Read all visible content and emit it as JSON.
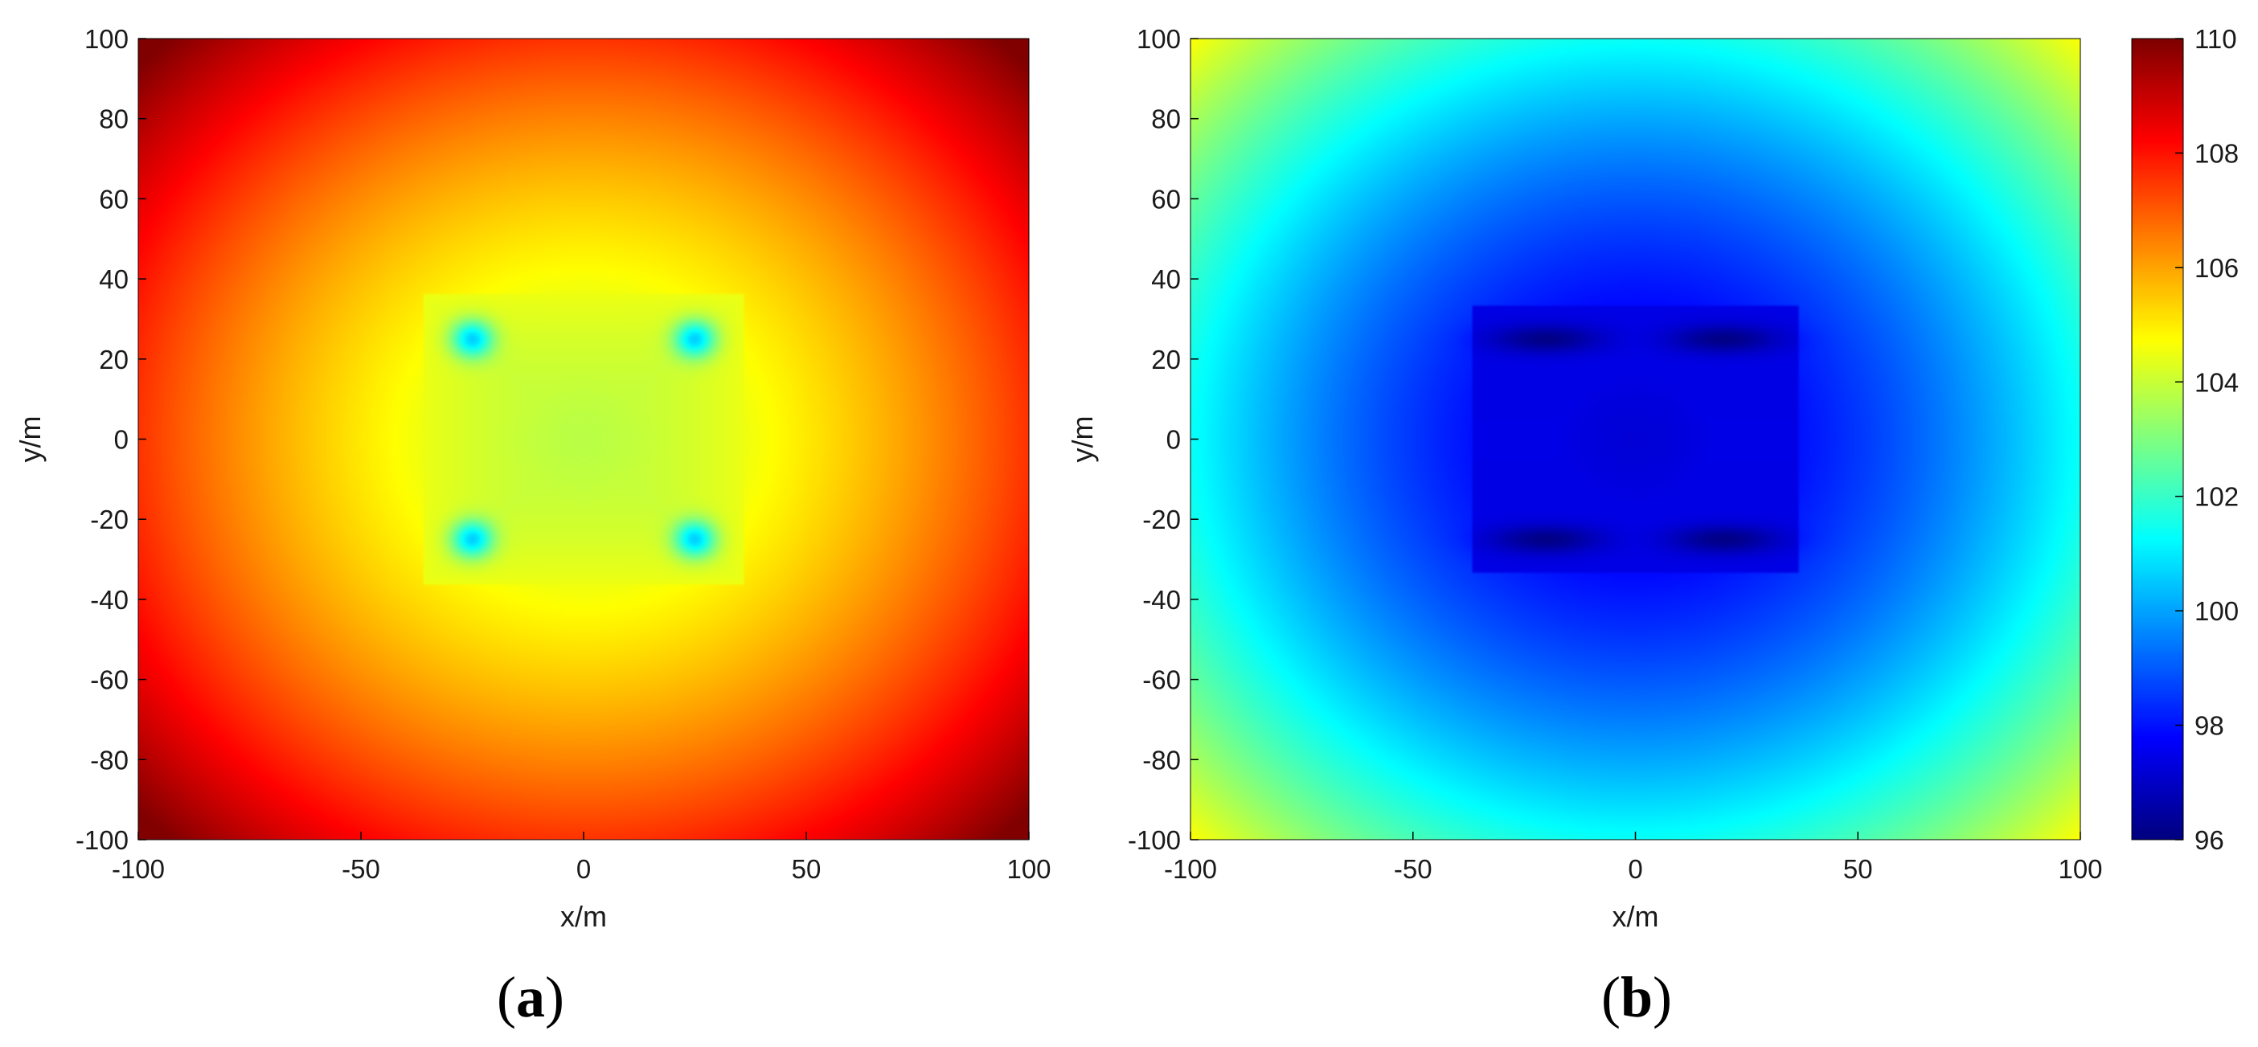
{
  "figure": {
    "panels": [
      {
        "id": "a",
        "caption_open": "(",
        "caption_letter": "a",
        "caption_close": ")"
      },
      {
        "id": "b",
        "caption_open": "(",
        "caption_letter": "b",
        "caption_close": ")"
      }
    ]
  },
  "chart_data": [
    {
      "type": "heatmap",
      "panel": "a",
      "xlabel": "x/m",
      "ylabel": "y/m",
      "xlim": [
        -100,
        100
      ],
      "ylim": [
        -100,
        100
      ],
      "x_ticks": [
        -100,
        -50,
        0,
        50,
        100
      ],
      "y_ticks": [
        -100,
        -80,
        -60,
        -40,
        -20,
        0,
        20,
        40,
        60,
        80,
        100
      ],
      "colormap": "jet",
      "clim": [
        96,
        110
      ],
      "sources": [
        [
          -25,
          25
        ],
        [
          25,
          25
        ],
        [
          -25,
          -25
        ],
        [
          25,
          -25
        ]
      ],
      "approx_values": {
        "center": 104,
        "source_points": 100,
        "corners": 110
      }
    },
    {
      "type": "heatmap",
      "panel": "b",
      "xlabel": "x/m",
      "ylabel": "y/m",
      "xlim": [
        -100,
        100
      ],
      "ylim": [
        -100,
        100
      ],
      "x_ticks": [
        -100,
        -50,
        0,
        50,
        100
      ],
      "y_ticks": [
        -100,
        -80,
        -60,
        -40,
        -20,
        0,
        20,
        40,
        60,
        80,
        100
      ],
      "colormap": "jet",
      "clim": [
        96,
        110
      ],
      "colorbar_ticks": [
        96,
        98,
        100,
        102,
        104,
        106,
        108,
        110
      ],
      "sources": [
        [
          -20,
          25
        ],
        [
          20,
          25
        ],
        [
          -20,
          -25
        ],
        [
          20,
          -25
        ]
      ],
      "approx_values": {
        "center": 97.5,
        "source_points": 96.5,
        "corners": 104.5
      }
    }
  ]
}
